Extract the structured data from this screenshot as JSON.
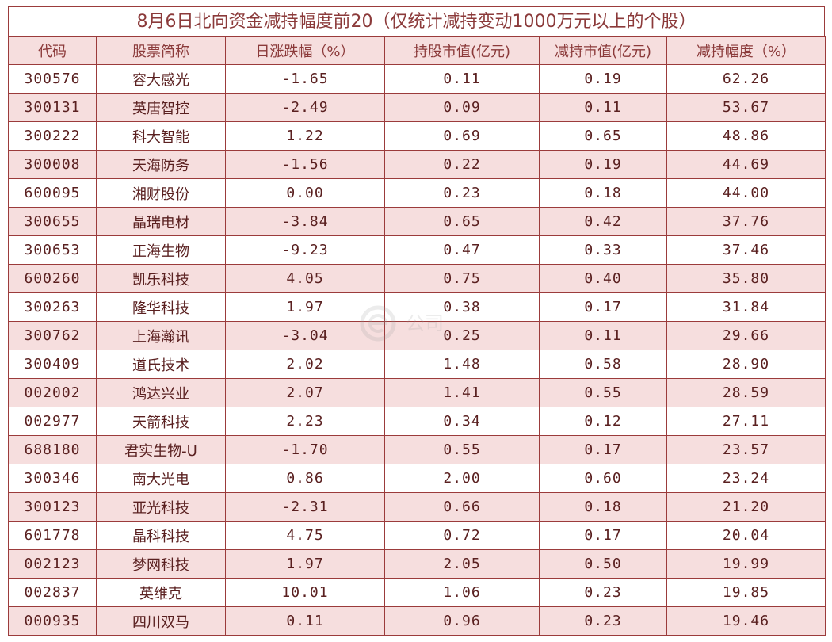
{
  "title": "8月6日北向资金减持幅度前20（仅统计减持变动1000万元以上的个股）",
  "headers": [
    "代码",
    "股票简称",
    "日涨跌幅（%）",
    "持股市值(亿元)",
    "减持市值(亿元)",
    "减持幅度（%）"
  ],
  "rows": [
    [
      "300576",
      "容大感光",
      "-1.65",
      "0.11",
      "0.19",
      "62.26"
    ],
    [
      "300131",
      "英唐智控",
      "-2.49",
      "0.09",
      "0.11",
      "53.67"
    ],
    [
      "300222",
      "科大智能",
      "1.22",
      "0.69",
      "0.65",
      "48.86"
    ],
    [
      "300008",
      "天海防务",
      "-1.56",
      "0.22",
      "0.19",
      "44.69"
    ],
    [
      "600095",
      "湘财股份",
      "0.00",
      "0.23",
      "0.18",
      "44.00"
    ],
    [
      "300655",
      "晶瑞电材",
      "-3.84",
      "0.65",
      "0.42",
      "37.76"
    ],
    [
      "300653",
      "正海生物",
      "-9.23",
      "0.47",
      "0.33",
      "37.46"
    ],
    [
      "600260",
      "凯乐科技",
      "4.05",
      "0.75",
      "0.40",
      "35.80"
    ],
    [
      "300263",
      "隆华科技",
      "1.97",
      "0.38",
      "0.17",
      "31.84"
    ],
    [
      "300762",
      "上海瀚讯",
      "-3.04",
      "0.25",
      "0.11",
      "29.66"
    ],
    [
      "300409",
      "道氏技术",
      "2.02",
      "1.48",
      "0.58",
      "28.90"
    ],
    [
      "002002",
      "鸿达兴业",
      "2.07",
      "1.41",
      "0.55",
      "28.59"
    ],
    [
      "002977",
      "天箭科技",
      "2.23",
      "0.34",
      "0.12",
      "27.11"
    ],
    [
      "688180",
      "君实生物-U",
      "-1.70",
      "0.55",
      "0.17",
      "23.57"
    ],
    [
      "300346",
      "南大光电",
      "0.86",
      "2.00",
      "0.60",
      "23.24"
    ],
    [
      "300123",
      "亚光科技",
      "-2.31",
      "0.66",
      "0.18",
      "21.20"
    ],
    [
      "601778",
      "晶科科技",
      "4.75",
      "0.72",
      "0.17",
      "20.04"
    ],
    [
      "002123",
      "梦网科技",
      "1.97",
      "2.05",
      "0.50",
      "19.99"
    ],
    [
      "002837",
      "英维克",
      "10.01",
      "1.06",
      "0.23",
      "19.85"
    ],
    [
      "000935",
      "四川双马",
      "0.11",
      "0.96",
      "0.23",
      "19.46"
    ]
  ],
  "watermark": {
    "text": "公司",
    "icon": "watermark-logo-icon"
  },
  "colors": {
    "border": "#9b3b3b",
    "header_bg": "#f6dede",
    "alt_row_bg": "#f6dede",
    "text": "#5a2020"
  }
}
